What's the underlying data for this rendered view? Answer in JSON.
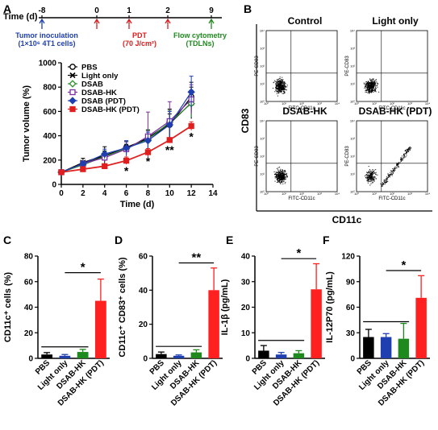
{
  "panel_labels": [
    "A",
    "B",
    "C",
    "D",
    "E",
    "F"
  ],
  "timeline": {
    "label": "Time (d)",
    "ticks": [
      "-8",
      "0",
      "1",
      "2",
      "9"
    ],
    "events": [
      {
        "text": "Tumor inoculation",
        "sub": "(1×10⁶ 4T1 cells)",
        "color": "#1f3fb0",
        "tick_index": 0
      },
      {
        "text": "PDT",
        "sub": "(70 J/cm²)",
        "color": "#d81e1e",
        "tick_index": 2
      },
      {
        "text": "Flow cytometry",
        "sub": "(TDLNs)",
        "color": "#1e8a1e",
        "tick_index": 4
      }
    ],
    "arrow_ticks": [
      0,
      1,
      2,
      3,
      4
    ],
    "arrow_colors": [
      "#1f3fb0",
      "#d81e1e",
      "#d81e1e",
      "#d81e1e",
      "#1e8a1e"
    ]
  },
  "chart_data": [
    {
      "type": "line",
      "panel": "A",
      "xlabel": "Time (d)",
      "ylabel": "Tumor volume (%)",
      "xlim": [
        0,
        14
      ],
      "ylim": [
        0,
        1000
      ],
      "xticks": [
        0,
        2,
        4,
        6,
        8,
        10,
        12,
        14
      ],
      "yticks": [
        0,
        200,
        400,
        600,
        800,
        1000
      ],
      "x": [
        0,
        2,
        4,
        6,
        8,
        10,
        12
      ],
      "legend": "top-left",
      "series": [
        {
          "name": "PBS",
          "color": "#000000",
          "marker": "circle",
          "values": [
            100,
            165,
            235,
            305,
            375,
            490,
            720
          ],
          "errors": [
            0,
            25,
            40,
            50,
            70,
            90,
            120
          ]
        },
        {
          "name": "Light only",
          "color": "#000000",
          "marker": "cross",
          "values": [
            100,
            180,
            240,
            290,
            385,
            500,
            670
          ],
          "errors": [
            0,
            35,
            70,
            40,
            60,
            120,
            130
          ]
        },
        {
          "name": "DSAB",
          "color": "#2f8f2f",
          "marker": "diamond",
          "values": [
            100,
            160,
            230,
            295,
            370,
            510,
            665
          ],
          "errors": [
            0,
            30,
            40,
            60,
            80,
            100,
            110
          ]
        },
        {
          "name": "DSAB-HK",
          "color": "#7b2fa0",
          "marker": "square",
          "values": [
            100,
            170,
            220,
            290,
            395,
            520,
            700
          ],
          "errors": [
            0,
            20,
            30,
            60,
            200,
            160,
            120
          ]
        },
        {
          "name": "DSAB (PDT)",
          "color": "#1f3fb0",
          "marker": "diamond",
          "values": [
            100,
            170,
            250,
            300,
            360,
            490,
            760
          ],
          "errors": [
            0,
            20,
            40,
            60,
            70,
            110,
            130
          ]
        },
        {
          "name": "DSAB-HK (PDT)",
          "color": "#e01f1f",
          "marker": "square",
          "values": [
            100,
            125,
            150,
            195,
            265,
            365,
            480
          ],
          "errors": [
            0,
            15,
            15,
            30,
            30,
            20,
            35
          ]
        }
      ],
      "annotations": [
        {
          "x": 6,
          "text": "*",
          "y": 120
        },
        {
          "x": 8,
          "text": "*",
          "y": 200
        },
        {
          "x": 10,
          "text": "**",
          "y": 290
        },
        {
          "x": 12,
          "text": "*",
          "y": 400
        }
      ]
    },
    {
      "type": "bar",
      "panel": "C",
      "categories": [
        "PBS",
        "Light only",
        "DSAB-HK",
        "DSAB-HK (PDT)"
      ],
      "values": [
        3,
        2,
        5,
        45
      ],
      "errors": [
        1.5,
        1,
        2,
        17
      ],
      "colors": [
        "#000000",
        "#1f3fb0",
        "#1e8a1e",
        "#ff2020"
      ],
      "ylabel": "CD11c⁺ cells (%)",
      "ylim": [
        0,
        80
      ],
      "yticks": [
        0,
        20,
        40,
        60,
        80
      ],
      "significance": {
        "from": 1,
        "to": 3,
        "text": "*",
        "level": 67
      },
      "baseline_bar": {
        "from": 0,
        "to": 2,
        "level": 9
      }
    },
    {
      "type": "bar",
      "panel": "D",
      "categories": [
        "PBS",
        "Light only",
        "DSAB-HK",
        "DSAB-HK (PDT)"
      ],
      "values": [
        2.5,
        1.5,
        3.5,
        40
      ],
      "errors": [
        1.2,
        0.5,
        1.5,
        13
      ],
      "colors": [
        "#000000",
        "#1f3fb0",
        "#1e8a1e",
        "#ff2020"
      ],
      "ylabel": "CD11c⁺ CD83⁺ cells (%)",
      "ylim": [
        0,
        60
      ],
      "yticks": [
        0,
        20,
        40,
        60
      ],
      "significance": {
        "from": 1,
        "to": 3,
        "text": "**",
        "level": 56
      },
      "baseline_bar": {
        "from": 0,
        "to": 2,
        "level": 7
      }
    },
    {
      "type": "bar",
      "panel": "E",
      "categories": [
        "PBS",
        "Light only",
        "DSAB-HK",
        "DSAB-HK (PDT)"
      ],
      "values": [
        3,
        1.5,
        2,
        27
      ],
      "errors": [
        2,
        0.8,
        1,
        10
      ],
      "colors": [
        "#000000",
        "#1f3fb0",
        "#1e8a1e",
        "#ff2020"
      ],
      "ylabel": "IL-1β (pg/mL)",
      "ylim": [
        0,
        40
      ],
      "yticks": [
        0,
        10,
        20,
        30,
        40
      ],
      "significance": {
        "from": 1,
        "to": 3,
        "text": "*",
        "level": 39
      },
      "baseline_bar": {
        "from": 0,
        "to": 2,
        "level": 7
      }
    },
    {
      "type": "bar",
      "panel": "F",
      "categories": [
        "PBS",
        "Light only",
        "DSAB-HK",
        "DSAB-HK (PDT)"
      ],
      "values": [
        25,
        25,
        23,
        71
      ],
      "errors": [
        9,
        4,
        18,
        26
      ],
      "colors": [
        "#000000",
        "#1f3fb0",
        "#1e8a1e",
        "#ff2020"
      ],
      "ylabel": "IL-12P70 (pg/mL)",
      "ylim": [
        0,
        120
      ],
      "yticks": [
        0,
        30,
        60,
        90,
        120
      ],
      "significance": {
        "from": 1,
        "to": 3,
        "text": "*",
        "level": 103
      },
      "baseline_bar": {
        "from": 0,
        "to": 2,
        "level": 43
      }
    }
  ],
  "flow_panel": {
    "ylabel": "CD83",
    "xlabel": "CD11c",
    "plots": [
      {
        "title": "Control"
      },
      {
        "title": "Light only"
      },
      {
        "title": "DSAB-HK"
      },
      {
        "title": "DSAB-HK (PDT)"
      }
    ],
    "axis_x": "FITC-CD11c",
    "axis_y": "PE-CD83",
    "tick_labels": [
      "10⁰",
      "10¹",
      "10²",
      "10³",
      "10⁴"
    ]
  }
}
